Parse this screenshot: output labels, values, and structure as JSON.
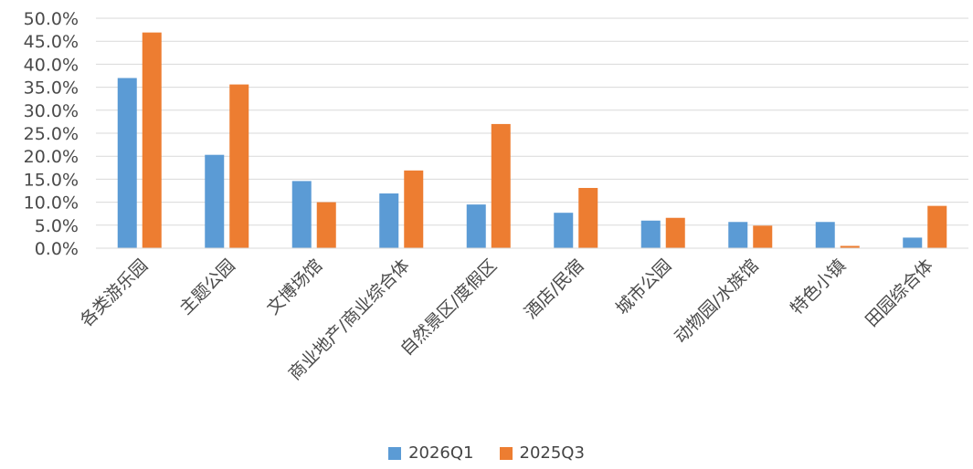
{
  "chart_data": {
    "type": "bar",
    "categories": [
      "各类游乐园",
      "主题公园",
      "文博场馆",
      "商业地产/商业综合体",
      "自然景区/度假区",
      "酒店/民宿",
      "城市公园",
      "动物园/水族馆",
      "特色小镇",
      "田园综合体"
    ],
    "series": [
      {
        "name": "2026Q1",
        "color": "#5b9bd5",
        "values": [
          37.0,
          20.3,
          14.6,
          11.9,
          9.5,
          7.7,
          6.0,
          5.7,
          5.7,
          2.3
        ]
      },
      {
        "name": "2025Q3",
        "color": "#ed7d31",
        "values": [
          46.9,
          35.6,
          10.0,
          16.9,
          27.0,
          13.1,
          6.6,
          4.9,
          0.5,
          9.2
        ]
      }
    ],
    "ylim": [
      0,
      50
    ],
    "yticks": [
      "0.0%",
      "5.0%",
      "10.0%",
      "15.0%",
      "20.0%",
      "25.0%",
      "30.0%",
      "35.0%",
      "40.0%",
      "45.0%",
      "50.0%"
    ],
    "grid": true,
    "legend": "bottom",
    "title": "",
    "xlabel": "",
    "ylabel": ""
  }
}
